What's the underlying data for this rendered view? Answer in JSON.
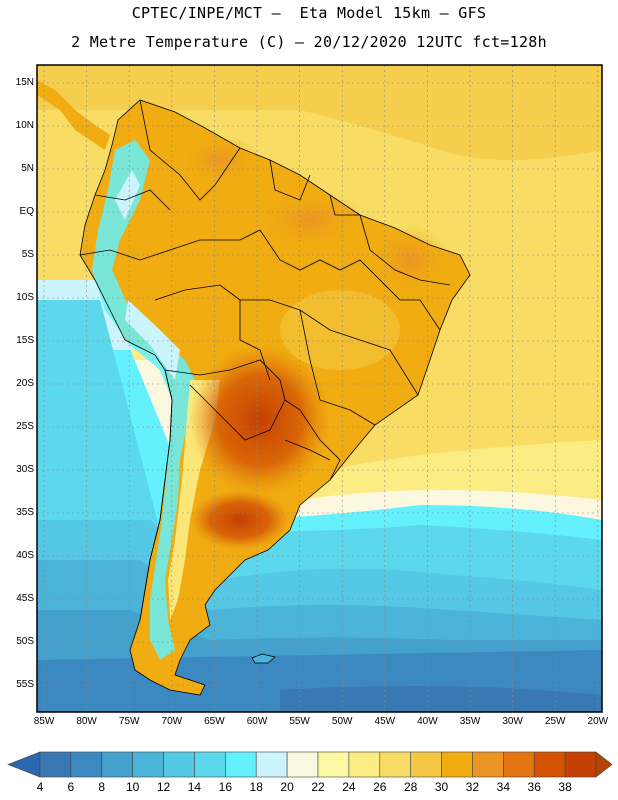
{
  "header": {
    "line1": "CPTEC/INPE/MCT –  Eta Model 15km – GFS",
    "line2": "2 Metre Temperature (C) – 20/12/2020 12UTC fct=128h"
  },
  "map": {
    "lat_labels": [
      "15N",
      "10N",
      "5N",
      "EQ",
      "5S",
      "10S",
      "15S",
      "20S",
      "25S",
      "30S",
      "35S",
      "40S",
      "45S",
      "50S",
      "55S"
    ],
    "lon_labels": [
      "85W",
      "80W",
      "75W",
      "70W",
      "65W",
      "60W",
      "55W",
      "50W",
      "45W",
      "40W",
      "35W",
      "30W",
      "25W",
      "20W"
    ]
  },
  "colorbar": {
    "labels": [
      "4",
      "6",
      "8",
      "10",
      "12",
      "14",
      "16",
      "18",
      "20",
      "22",
      "24",
      "26",
      "28",
      "30",
      "32",
      "34",
      "36",
      "38"
    ],
    "colors": [
      "#3a78b4",
      "#3c88c0",
      "#44a0cc",
      "#4cb4d8",
      "#54c8e4",
      "#5cd8ec",
      "#64f0fc",
      "#ccf4fc",
      "#fcf8e0",
      "#fcf8a4",
      "#fcec84",
      "#f8dc64",
      "#f4c844",
      "#f0ac10",
      "#ec9424",
      "#e47410",
      "#d45404",
      "#c44004"
    ],
    "low_color": "#2c68b0",
    "high_color": "#b44400"
  }
}
